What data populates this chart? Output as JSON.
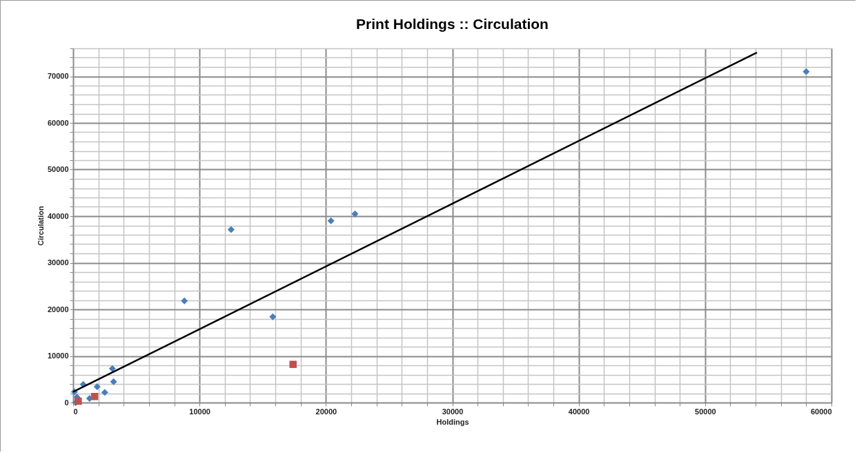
{
  "chart_data": {
    "type": "scatter",
    "title": "Print Holdings :: Circulation",
    "xlabel": "Holdings",
    "ylabel": "Circulation",
    "xlim": [
      0,
      60000
    ],
    "ylim": [
      0,
      76000
    ],
    "xticks": [
      0,
      {
        "value": 2000,
        "label": null
      },
      {
        "value": 4000,
        "label": null
      },
      {
        "value": 6000,
        "label": null
      },
      {
        "value": 8000,
        "label": null
      },
      10000,
      {
        "value": 12000,
        "label": null
      },
      {
        "value": 14000,
        "label": null
      },
      {
        "value": 16000,
        "label": null
      },
      {
        "value": 18000,
        "label": null
      },
      20000,
      {
        "value": 22000,
        "label": null
      },
      {
        "value": 24000,
        "label": null
      },
      {
        "value": 26000,
        "label": null
      },
      {
        "value": 28000,
        "label": null
      },
      30000,
      {
        "value": 32000,
        "label": null
      },
      {
        "value": 34000,
        "label": null
      },
      {
        "value": 36000,
        "label": null
      },
      {
        "value": 38000,
        "label": null
      },
      40000,
      {
        "value": 42000,
        "label": null
      },
      {
        "value": 44000,
        "label": null
      },
      {
        "value": 46000,
        "label": null
      },
      {
        "value": 48000,
        "label": null
      },
      50000,
      {
        "value": 52000,
        "label": null
      },
      {
        "value": 54000,
        "label": null
      },
      {
        "value": 56000,
        "label": null
      },
      {
        "value": 58000,
        "label": null
      },
      60000
    ],
    "yticks": [
      0,
      {
        "value": 2000,
        "label": null
      },
      {
        "value": 4000,
        "label": null
      },
      {
        "value": 6000,
        "label": null
      },
      {
        "value": 8000,
        "label": null
      },
      10000,
      {
        "value": 12000,
        "label": null
      },
      {
        "value": 14000,
        "label": null
      },
      {
        "value": 16000,
        "label": null
      },
      {
        "value": 18000,
        "label": null
      },
      20000,
      {
        "value": 22000,
        "label": null
      },
      {
        "value": 24000,
        "label": null
      },
      {
        "value": 26000,
        "label": null
      },
      {
        "value": 28000,
        "label": null
      },
      30000,
      {
        "value": 32000,
        "label": null
      },
      {
        "value": 34000,
        "label": null
      },
      {
        "value": 36000,
        "label": null
      },
      {
        "value": 38000,
        "label": null
      },
      40000,
      {
        "value": 42000,
        "label": null
      },
      {
        "value": 44000,
        "label": null
      },
      {
        "value": 46000,
        "label": null
      },
      {
        "value": 48000,
        "label": null
      },
      50000,
      {
        "value": 52000,
        "label": null
      },
      {
        "value": 54000,
        "label": null
      },
      {
        "value": 56000,
        "label": null
      },
      {
        "value": 58000,
        "label": null
      },
      60000,
      {
        "value": 62000,
        "label": null
      },
      {
        "value": 64000,
        "label": null
      },
      {
        "value": 66000,
        "label": null
      },
      {
        "value": 68000,
        "label": null
      },
      70000,
      {
        "value": 72000,
        "label": null
      },
      {
        "value": 74000,
        "label": null
      },
      {
        "value": 76000,
        "label": null
      }
    ],
    "grid": true,
    "series": [
      {
        "type": "scatter",
        "marker": "diamond",
        "color": "#4a7ebb",
        "x": [
          58000,
          22300,
          20400,
          12500,
          8800,
          15800,
          3100,
          3200,
          2500,
          1900,
          800,
          100,
          200,
          1300,
          300
        ],
        "values": [
          71000,
          40500,
          39000,
          37100,
          21800,
          18400,
          7300,
          4500,
          2200,
          3400,
          3900,
          2300,
          0,
          900,
          1200
        ]
      },
      {
        "type": "scatter",
        "marker": "square",
        "color": "#c0504d",
        "x": [
          17400,
          1700,
          400
        ],
        "values": [
          8200,
          1300,
          300
        ]
      },
      {
        "type": "line",
        "marker": "none",
        "line_style": "solid",
        "color": "#000000",
        "x": [
          0,
          54100
        ],
        "values": [
          2300,
          75100
        ]
      }
    ]
  }
}
